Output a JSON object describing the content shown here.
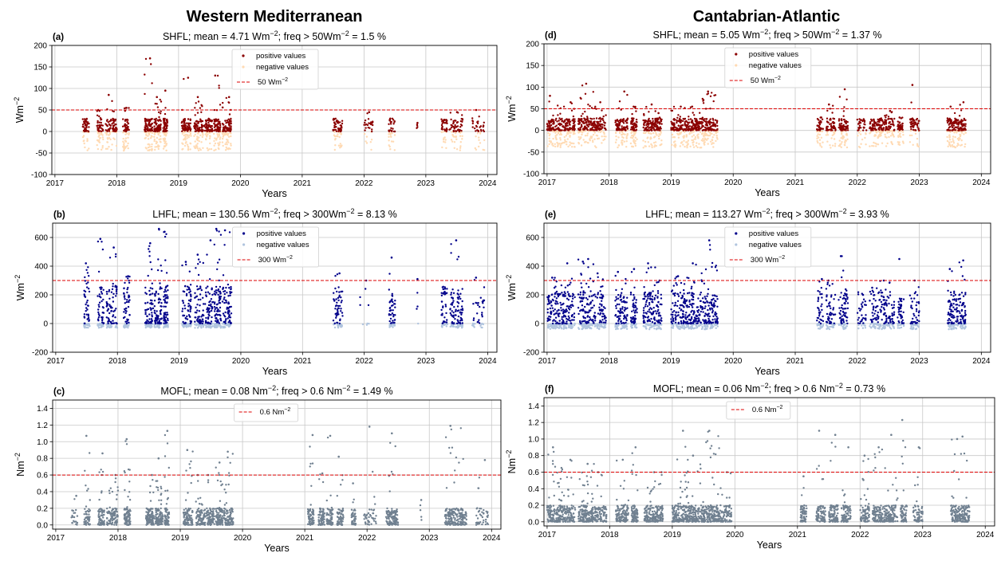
{
  "figure": {
    "column_titles": [
      "Western Mediterranean",
      "Cantabrian-Atlantic"
    ]
  },
  "chart_data": [
    {
      "id": "a",
      "letter": "(a)",
      "type": "scatter",
      "title_main": "SHFL;  mean = 4.71 Wm",
      "title_tail": "; freq > 50Wm",
      "title_end": " = 1.5 %",
      "sup": "−2",
      "xlabel": "Years",
      "ylabel_base": "Wm",
      "ylabel_sup": "−2",
      "xlim": [
        2016.95,
        2024.15
      ],
      "ylim": [
        -100,
        200
      ],
      "xticks": [
        2017,
        2018,
        2019,
        2020,
        2021,
        2022,
        2023,
        2024
      ],
      "yticks": [
        -100,
        -50,
        0,
        50,
        100,
        150,
        200
      ],
      "threshold": 50,
      "legend": [
        "positive values",
        "negative values"
      ],
      "threshold_label_base": "50 Wm",
      "threshold_label_sup": "−2",
      "pos_color": "#8b0000",
      "neg_color": "#ffdab3",
      "mode": "signed",
      "pos_range": [
        0,
        30
      ],
      "neg_range": [
        -45,
        0
      ],
      "seed": 11,
      "clusters": [
        {
          "s": 2017.45,
          "e": 2017.55,
          "d": 60,
          "p": 20
        },
        {
          "s": 2017.68,
          "e": 2017.78,
          "d": 60,
          "p": 50
        },
        {
          "s": 2017.82,
          "e": 2018.0,
          "d": 90,
          "p": 85
        },
        {
          "s": 2018.1,
          "e": 2018.2,
          "d": 70,
          "p": 55
        },
        {
          "s": 2018.45,
          "e": 2018.58,
          "d": 110,
          "p": 170
        },
        {
          "s": 2018.6,
          "e": 2018.72,
          "d": 100,
          "p": 80
        },
        {
          "s": 2018.75,
          "e": 2018.82,
          "d": 80,
          "p": 95
        },
        {
          "s": 2019.05,
          "e": 2019.2,
          "d": 110,
          "p": 125
        },
        {
          "s": 2019.25,
          "e": 2019.4,
          "d": 100,
          "p": 80
        },
        {
          "s": 2019.42,
          "e": 2019.55,
          "d": 80,
          "p": 25
        },
        {
          "s": 2019.57,
          "e": 2019.68,
          "d": 90,
          "p": 130
        },
        {
          "s": 2019.7,
          "e": 2019.85,
          "d": 110,
          "p": 80
        },
        {
          "s": 2021.5,
          "e": 2021.65,
          "d": 70,
          "p": 20
        },
        {
          "s": 2022.0,
          "e": 2022.15,
          "d": 30,
          "p": 45
        },
        {
          "s": 2022.4,
          "e": 2022.5,
          "d": 40,
          "p": 30
        },
        {
          "s": 2022.85,
          "e": 2022.88,
          "d": 4,
          "p": 20
        },
        {
          "s": 2023.25,
          "e": 2023.35,
          "d": 40,
          "p": 25
        },
        {
          "s": 2023.38,
          "e": 2023.6,
          "d": 70,
          "p": 45
        },
        {
          "s": 2023.75,
          "e": 2023.95,
          "d": 40,
          "p": 50
        }
      ]
    },
    {
      "id": "b",
      "letter": "(b)",
      "type": "scatter",
      "title_main": "LHFL;  mean = 130.56 Wm",
      "title_tail": "; freq > 300Wm",
      "title_end": " = 8.13 %",
      "sup": "−2",
      "xlabel": "Years",
      "ylabel_base": "Wm",
      "ylabel_sup": "−2",
      "xlim": [
        2016.95,
        2024.15
      ],
      "ylim": [
        -200,
        700
      ],
      "xticks": [
        2017,
        2018,
        2019,
        2020,
        2021,
        2022,
        2023,
        2024
      ],
      "yticks": [
        -200,
        0,
        200,
        400,
        600
      ],
      "threshold": 300,
      "legend": [
        "positive values",
        "negative values"
      ],
      "threshold_label_base": "300 Wm",
      "threshold_label_sup": "−2",
      "pos_color": "#00008b",
      "neg_color": "#b0c4de",
      "mode": "signed",
      "pos_range": [
        0,
        260
      ],
      "neg_range": [
        -30,
        0
      ],
      "seed": 23,
      "clusters": [
        {
          "s": 2017.45,
          "e": 2017.55,
          "d": 60,
          "p": 420
        },
        {
          "s": 2017.68,
          "e": 2017.78,
          "d": 70,
          "p": 590
        },
        {
          "s": 2017.82,
          "e": 2018.0,
          "d": 90,
          "p": 530
        },
        {
          "s": 2018.1,
          "e": 2018.2,
          "d": 70,
          "p": 330
        },
        {
          "s": 2018.45,
          "e": 2018.58,
          "d": 100,
          "p": 560
        },
        {
          "s": 2018.6,
          "e": 2018.72,
          "d": 100,
          "p": 660
        },
        {
          "s": 2018.75,
          "e": 2018.82,
          "d": 80,
          "p": 640
        },
        {
          "s": 2019.05,
          "e": 2019.2,
          "d": 100,
          "p": 430
        },
        {
          "s": 2019.25,
          "e": 2019.4,
          "d": 90,
          "p": 480
        },
        {
          "s": 2019.42,
          "e": 2019.55,
          "d": 90,
          "p": 580
        },
        {
          "s": 2019.57,
          "e": 2019.68,
          "d": 100,
          "p": 660
        },
        {
          "s": 2019.7,
          "e": 2019.85,
          "d": 100,
          "p": 650
        },
        {
          "s": 2021.5,
          "e": 2021.65,
          "d": 80,
          "p": 350
        },
        {
          "s": 2021.9,
          "e": 2022.1,
          "d": 8,
          "p": 300
        },
        {
          "s": 2022.4,
          "e": 2022.5,
          "d": 60,
          "p": 460
        },
        {
          "s": 2022.85,
          "e": 2022.88,
          "d": 4,
          "p": 310
        },
        {
          "s": 2023.25,
          "e": 2023.35,
          "d": 50,
          "p": 240
        },
        {
          "s": 2023.38,
          "e": 2023.6,
          "d": 120,
          "p": 580
        },
        {
          "s": 2023.75,
          "e": 2023.95,
          "d": 40,
          "p": 320
        }
      ]
    },
    {
      "id": "c",
      "letter": "(c)",
      "type": "scatter",
      "title_main": "MOFL;  mean = 0.08 Nm",
      "title_tail": "; freq > 0.6 Nm",
      "title_end": " = 1.49 %",
      "sup": "−2",
      "xlabel": "Years",
      "ylabel_base": "Nm",
      "ylabel_sup": "−2",
      "xlim": [
        2016.95,
        2024.15
      ],
      "ylim": [
        -0.05,
        1.5
      ],
      "xticks": [
        2017,
        2018,
        2019,
        2020,
        2021,
        2022,
        2023,
        2024
      ],
      "yticks": [
        0.0,
        0.2,
        0.4,
        0.6,
        0.8,
        1.0,
        1.2,
        1.4
      ],
      "ytick_decimals": 1,
      "threshold": 0.6,
      "legend": [],
      "threshold_label_base": "0.6 Nm",
      "threshold_label_sup": "−2",
      "pos_color": "#708090",
      "neg_color": "#708090",
      "mode": "positive",
      "pos_range": [
        0,
        0.2
      ],
      "seed": 37,
      "clusters": [
        {
          "s": 2017.25,
          "e": 2017.35,
          "d": 20,
          "p": 0.35
        },
        {
          "s": 2017.45,
          "e": 2017.55,
          "d": 50,
          "p": 1.07
        },
        {
          "s": 2017.68,
          "e": 2017.78,
          "d": 70,
          "p": 0.86
        },
        {
          "s": 2017.82,
          "e": 2018.0,
          "d": 90,
          "p": 0.6
        },
        {
          "s": 2018.1,
          "e": 2018.2,
          "d": 80,
          "p": 1.03
        },
        {
          "s": 2018.45,
          "e": 2018.58,
          "d": 100,
          "p": 0.6
        },
        {
          "s": 2018.6,
          "e": 2018.72,
          "d": 100,
          "p": 0.8
        },
        {
          "s": 2018.75,
          "e": 2018.82,
          "d": 80,
          "p": 1.13
        },
        {
          "s": 2019.05,
          "e": 2019.2,
          "d": 100,
          "p": 0.9
        },
        {
          "s": 2019.25,
          "e": 2019.4,
          "d": 90,
          "p": 0.6
        },
        {
          "s": 2019.42,
          "e": 2019.55,
          "d": 90,
          "p": 0.6
        },
        {
          "s": 2019.57,
          "e": 2019.68,
          "d": 90,
          "p": 0.75
        },
        {
          "s": 2019.7,
          "e": 2019.85,
          "d": 100,
          "p": 0.88
        },
        {
          "s": 2021.05,
          "e": 2021.15,
          "d": 70,
          "p": 1.08
        },
        {
          "s": 2021.22,
          "e": 2021.32,
          "d": 70,
          "p": 0.62
        },
        {
          "s": 2021.35,
          "e": 2021.45,
          "d": 70,
          "p": 1.07
        },
        {
          "s": 2021.52,
          "e": 2021.62,
          "d": 70,
          "p": 0.82
        },
        {
          "s": 2021.75,
          "e": 2021.82,
          "d": 40,
          "p": 0.5
        },
        {
          "s": 2021.95,
          "e": 2022.15,
          "d": 40,
          "p": 1.18
        },
        {
          "s": 2022.3,
          "e": 2022.5,
          "d": 120,
          "p": 1.1
        },
        {
          "s": 2022.85,
          "e": 2022.88,
          "d": 4,
          "p": 0.3
        },
        {
          "s": 2023.25,
          "e": 2023.6,
          "d": 200,
          "p": 1.19
        },
        {
          "s": 2023.75,
          "e": 2023.95,
          "d": 40,
          "p": 0.78
        }
      ]
    },
    {
      "id": "d",
      "letter": "(d)",
      "type": "scatter",
      "title_main": "SHFL;  mean = 5.05 Wm",
      "title_tail": "; freq > 50Wm",
      "title_end": " = 1.37 %",
      "sup": "−2",
      "xlabel": "Years",
      "ylabel_base": "Wm",
      "ylabel_sup": "−2",
      "xlim": [
        2016.95,
        2024.15
      ],
      "ylim": [
        -100,
        200
      ],
      "xticks": [
        2017,
        2018,
        2019,
        2020,
        2021,
        2022,
        2023,
        2024
      ],
      "yticks": [
        -100,
        -50,
        0,
        50,
        100,
        150,
        200
      ],
      "threshold": 50,
      "legend": [
        "positive values",
        "negative values"
      ],
      "threshold_label_base": "50 Wm",
      "threshold_label_sup": "−2",
      "pos_color": "#8b0000",
      "neg_color": "#ffdab3",
      "mode": "signed",
      "pos_range": [
        0,
        28
      ],
      "neg_range": [
        -40,
        0
      ],
      "seed": 53,
      "clusters": [
        {
          "s": 2017.0,
          "e": 2017.2,
          "d": 120,
          "p": 80
        },
        {
          "s": 2017.2,
          "e": 2017.45,
          "d": 140,
          "p": 65
        },
        {
          "s": 2017.5,
          "e": 2017.75,
          "d": 150,
          "p": 108
        },
        {
          "s": 2017.75,
          "e": 2017.95,
          "d": 90,
          "p": 65
        },
        {
          "s": 2018.1,
          "e": 2018.3,
          "d": 120,
          "p": 90
        },
        {
          "s": 2018.35,
          "e": 2018.45,
          "d": 80,
          "p": 55
        },
        {
          "s": 2018.55,
          "e": 2018.75,
          "d": 120,
          "p": 60
        },
        {
          "s": 2018.75,
          "e": 2018.85,
          "d": 60,
          "p": 40
        },
        {
          "s": 2019.0,
          "e": 2019.25,
          "d": 150,
          "p": 55
        },
        {
          "s": 2019.25,
          "e": 2019.5,
          "d": 150,
          "p": 55
        },
        {
          "s": 2019.5,
          "e": 2019.75,
          "d": 160,
          "p": 90
        },
        {
          "s": 2021.35,
          "e": 2021.45,
          "d": 50,
          "p": 30
        },
        {
          "s": 2021.5,
          "e": 2021.65,
          "d": 70,
          "p": 60
        },
        {
          "s": 2021.7,
          "e": 2021.85,
          "d": 90,
          "p": 95
        },
        {
          "s": 2022.0,
          "e": 2022.15,
          "d": 40,
          "p": 20
        },
        {
          "s": 2022.2,
          "e": 2022.35,
          "d": 70,
          "p": 25
        },
        {
          "s": 2022.35,
          "e": 2022.6,
          "d": 120,
          "p": 45
        },
        {
          "s": 2022.65,
          "e": 2022.75,
          "d": 50,
          "p": 30
        },
        {
          "s": 2022.85,
          "e": 2023.0,
          "d": 60,
          "p": 105
        },
        {
          "s": 2023.45,
          "e": 2023.6,
          "d": 90,
          "p": 55
        },
        {
          "s": 2023.6,
          "e": 2023.75,
          "d": 90,
          "p": 65
        }
      ]
    },
    {
      "id": "e",
      "letter": "(e)",
      "type": "scatter",
      "title_main": "LHFL;  mean = 113.27 Wm",
      "title_tail": "; freq > 300Wm",
      "title_end": " = 3.93 %",
      "sup": "−2",
      "xlabel": "Years",
      "ylabel_base": "Wm",
      "ylabel_sup": "−2",
      "xlim": [
        2016.95,
        2024.15
      ],
      "ylim": [
        -200,
        700
      ],
      "xticks": [
        2017,
        2018,
        2019,
        2020,
        2021,
        2022,
        2023,
        2024
      ],
      "yticks": [
        -200,
        0,
        200,
        400,
        600
      ],
      "threshold": 300,
      "legend": [
        "positive values",
        "negative values"
      ],
      "threshold_label_base": "300 Wm",
      "threshold_label_sup": "−2",
      "pos_color": "#00008b",
      "neg_color": "#b0c4de",
      "mode": "signed",
      "pos_range": [
        0,
        220
      ],
      "neg_range": [
        -40,
        0
      ],
      "seed": 71,
      "clusters": [
        {
          "s": 2017.0,
          "e": 2017.2,
          "d": 120,
          "p": 320
        },
        {
          "s": 2017.2,
          "e": 2017.45,
          "d": 140,
          "p": 420
        },
        {
          "s": 2017.5,
          "e": 2017.75,
          "d": 150,
          "p": 450
        },
        {
          "s": 2017.75,
          "e": 2017.95,
          "d": 90,
          "p": 350
        },
        {
          "s": 2018.1,
          "e": 2018.3,
          "d": 120,
          "p": 360
        },
        {
          "s": 2018.35,
          "e": 2018.45,
          "d": 80,
          "p": 380
        },
        {
          "s": 2018.55,
          "e": 2018.75,
          "d": 120,
          "p": 420
        },
        {
          "s": 2018.75,
          "e": 2018.85,
          "d": 60,
          "p": 300
        },
        {
          "s": 2019.0,
          "e": 2019.25,
          "d": 150,
          "p": 330
        },
        {
          "s": 2019.25,
          "e": 2019.5,
          "d": 150,
          "p": 420
        },
        {
          "s": 2019.5,
          "e": 2019.75,
          "d": 160,
          "p": 580
        },
        {
          "s": 2021.35,
          "e": 2021.45,
          "d": 50,
          "p": 310
        },
        {
          "s": 2021.5,
          "e": 2021.65,
          "d": 70,
          "p": 300
        },
        {
          "s": 2021.7,
          "e": 2021.85,
          "d": 90,
          "p": 470
        },
        {
          "s": 2022.0,
          "e": 2022.15,
          "d": 40,
          "p": 200
        },
        {
          "s": 2022.2,
          "e": 2022.35,
          "d": 70,
          "p": 250
        },
        {
          "s": 2022.35,
          "e": 2022.6,
          "d": 120,
          "p": 300
        },
        {
          "s": 2022.65,
          "e": 2022.75,
          "d": 50,
          "p": 450
        },
        {
          "s": 2022.85,
          "e": 2023.0,
          "d": 60,
          "p": 300
        },
        {
          "s": 2023.45,
          "e": 2023.6,
          "d": 90,
          "p": 380
        },
        {
          "s": 2023.6,
          "e": 2023.75,
          "d": 90,
          "p": 440
        }
      ]
    },
    {
      "id": "f",
      "letter": "(f)",
      "type": "scatter",
      "title_main": "MOFL;  mean = 0.06 Nm",
      "title_tail": "; freq > 0.6 Nm",
      "title_end": " = 0.73 %",
      "sup": "−2",
      "xlabel": "Years",
      "ylabel_base": "Nm",
      "ylabel_sup": "−2",
      "xlim": [
        2016.95,
        2024.15
      ],
      "ylim": [
        -0.05,
        1.5
      ],
      "xticks": [
        2017,
        2018,
        2019,
        2020,
        2021,
        2022,
        2023,
        2024
      ],
      "yticks": [
        0.0,
        0.2,
        0.4,
        0.6,
        0.8,
        1.0,
        1.2,
        1.4
      ],
      "ytick_decimals": 1,
      "threshold": 0.6,
      "legend": [],
      "threshold_label_base": "0.6 Nm",
      "threshold_label_sup": "−2",
      "pos_color": "#708090",
      "neg_color": "#708090",
      "mode": "positive",
      "pos_range": [
        0,
        0.2
      ],
      "seed": 89,
      "clusters": [
        {
          "s": 2017.0,
          "e": 2017.2,
          "d": 120,
          "p": 0.9
        },
        {
          "s": 2017.2,
          "e": 2017.45,
          "d": 140,
          "p": 0.75
        },
        {
          "s": 2017.5,
          "e": 2017.75,
          "d": 150,
          "p": 0.7
        },
        {
          "s": 2017.75,
          "e": 2017.95,
          "d": 90,
          "p": 0.6
        },
        {
          "s": 2018.1,
          "e": 2018.3,
          "d": 120,
          "p": 0.75
        },
        {
          "s": 2018.35,
          "e": 2018.45,
          "d": 80,
          "p": 0.9
        },
        {
          "s": 2018.55,
          "e": 2018.75,
          "d": 120,
          "p": 0.6
        },
        {
          "s": 2018.75,
          "e": 2018.85,
          "d": 60,
          "p": 0.6
        },
        {
          "s": 2019.0,
          "e": 2019.25,
          "d": 150,
          "p": 1.1
        },
        {
          "s": 2019.25,
          "e": 2019.5,
          "d": 150,
          "p": 0.8
        },
        {
          "s": 2019.5,
          "e": 2019.75,
          "d": 160,
          "p": 1.1
        },
        {
          "s": 2019.75,
          "e": 2019.95,
          "d": 80,
          "p": 0.6
        },
        {
          "s": 2021.05,
          "e": 2021.15,
          "d": 60,
          "p": 0.55
        },
        {
          "s": 2021.3,
          "e": 2021.45,
          "d": 80,
          "p": 1.1
        },
        {
          "s": 2021.5,
          "e": 2021.65,
          "d": 80,
          "p": 1.05
        },
        {
          "s": 2021.7,
          "e": 2021.85,
          "d": 80,
          "p": 0.9
        },
        {
          "s": 2022.0,
          "e": 2022.15,
          "d": 80,
          "p": 0.8
        },
        {
          "s": 2022.2,
          "e": 2022.35,
          "d": 80,
          "p": 0.9
        },
        {
          "s": 2022.35,
          "e": 2022.6,
          "d": 140,
          "p": 1.05
        },
        {
          "s": 2022.65,
          "e": 2022.75,
          "d": 60,
          "p": 1.23
        },
        {
          "s": 2022.85,
          "e": 2023.0,
          "d": 60,
          "p": 0.9
        },
        {
          "s": 2023.45,
          "e": 2023.6,
          "d": 90,
          "p": 1.0
        },
        {
          "s": 2023.6,
          "e": 2023.75,
          "d": 90,
          "p": 1.03
        }
      ]
    }
  ]
}
